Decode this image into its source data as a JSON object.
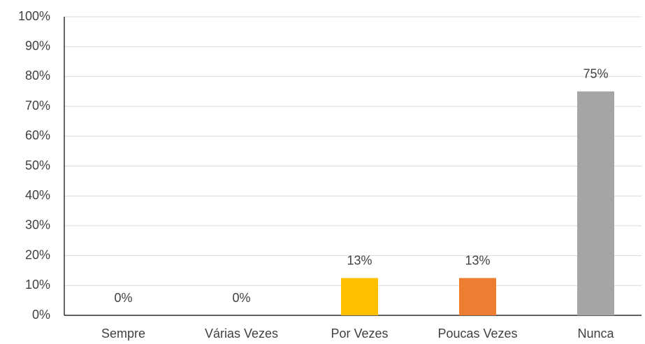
{
  "chart_data": {
    "type": "bar",
    "categories": [
      "Sempre",
      "Várias Vezes",
      "Por Vezes",
      "Poucas Vezes",
      "Nunca"
    ],
    "values": [
      0,
      0,
      12.5,
      12.5,
      75
    ],
    "value_labels": [
      "0%",
      "0%",
      "13%",
      "13%",
      "75%"
    ],
    "colors": [
      null,
      null,
      "#ffc000",
      "#ed7d31",
      "#a5a5a5"
    ],
    "ylim": [
      0,
      100
    ],
    "yticks": [
      {
        "value": 0,
        "label": "0%"
      },
      {
        "value": 10,
        "label": "10%"
      },
      {
        "value": 20,
        "label": "20%"
      },
      {
        "value": 30,
        "label": "30%"
      },
      {
        "value": 40,
        "label": "40%"
      },
      {
        "value": 50,
        "label": "50%"
      },
      {
        "value": 60,
        "label": "60%"
      },
      {
        "value": 70,
        "label": "70%"
      },
      {
        "value": 80,
        "label": "80%"
      },
      {
        "value": 90,
        "label": "90%"
      },
      {
        "value": 100,
        "label": "100%"
      }
    ],
    "grid": true
  }
}
